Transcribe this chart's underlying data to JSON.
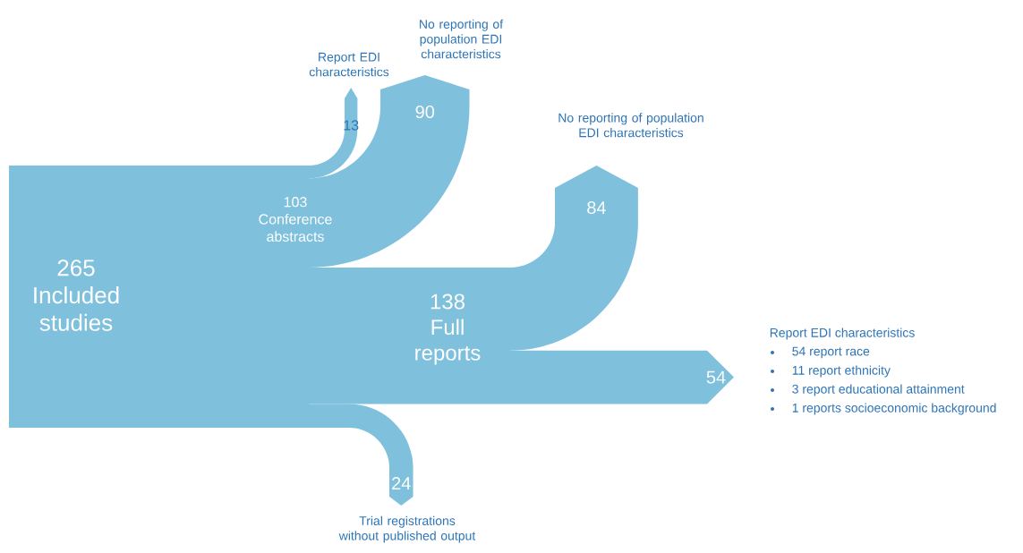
{
  "chart_data": {
    "type": "other",
    "categories": [
      "Included studies",
      "Conference abstracts",
      "Report EDI characteristics",
      "No reporting of population EDI characteristics",
      "Full reports",
      "No reporting of population EDI characteristics",
      "Report EDI characteristics",
      "Trial registrations without published output"
    ],
    "values": [
      265,
      103,
      13,
      90,
      138,
      84,
      54,
      24
    ],
    "value_labels": [
      "265",
      "103",
      "13",
      "90",
      "138",
      "84",
      "54",
      "24"
    ],
    "color": "#7fc0dc",
    "annotations": [
      "54 report race",
      "11 report ethnicity",
      "3 report educational attainment",
      "1 reports socioeconomic background"
    ]
  }
}
